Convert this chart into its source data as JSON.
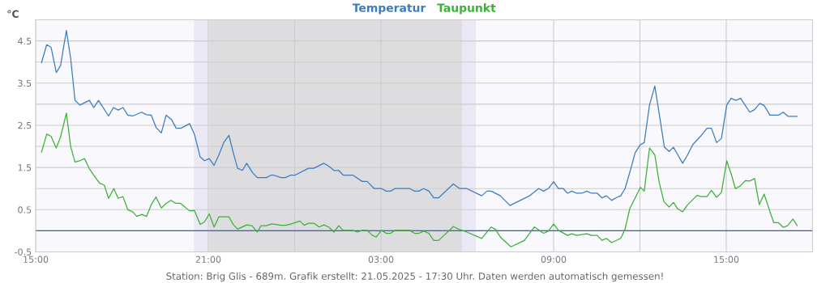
{
  "chart_data": {
    "type": "line",
    "ylabel": "°C",
    "legend": "top",
    "grid": true,
    "line_style": "solid",
    "marker": "none",
    "xlim": [
      "2025-05-20T15:00",
      "2025-05-21T18:00"
    ],
    "xticks": [
      {
        "value": "2025-05-20T15:00",
        "label": "15:00"
      },
      {
        "value": "2025-05-20T21:00",
        "label": "21:00"
      },
      {
        "value": "2025-05-21T00:00",
        "label": null
      },
      {
        "value": "2025-05-21T03:00",
        "label": "03:00"
      },
      {
        "value": "2025-05-21T09:00",
        "label": "09:00"
      },
      {
        "value": "2025-05-21T12:00",
        "label": null
      },
      {
        "value": "2025-05-21T15:00",
        "label": "15:00"
      }
    ],
    "ylim": [
      -0.5,
      5
    ],
    "yticks": [
      -0.5,
      {
        "value": 0,
        "label": null
      },
      0.5,
      {
        "value": 1,
        "label": null
      },
      1.5,
      {
        "value": 2,
        "label": null
      },
      2.5,
      {
        "value": 3,
        "label": null
      },
      3.5,
      {
        "value": 4,
        "label": null
      },
      4.5,
      {
        "value": 5,
        "label": null
      }
    ],
    "bands": [
      {
        "axis": "x",
        "from": "2025-05-20T20:30",
        "to": "2025-05-20T21:02",
        "color": "#ebe8f5"
      },
      {
        "axis": "x",
        "from": "2025-05-20T21:02",
        "to": "2025-05-21T05:49",
        "color": "#dddde0"
      },
      {
        "axis": "x",
        "from": "2025-05-21T05:49",
        "to": "2025-05-21T06:18",
        "color": "#ebe8f5"
      }
    ],
    "ref_lines": [
      {
        "axis": "y",
        "value": 0,
        "color": "#2a5fd8",
        "line_style": "solid"
      }
    ],
    "annotations": [
      "Station: Brig Glis - 689m. Grafik erstellt: 21.05.2025 - 17:30 Uhr. Daten werden automatisch gemessen!"
    ],
    "series": [
      {
        "name": "Temperatur",
        "color": "#3a7cbd",
        "x": [
          "2025-05-20T15:12",
          "2025-05-20T15:23",
          "2025-05-20T15:32",
          "2025-05-20T15:43",
          "2025-05-20T15:52",
          "2025-05-20T16:04",
          "2025-05-20T16:13",
          "2025-05-20T16:22",
          "2025-05-20T16:32",
          "2025-05-20T16:52",
          "2025-05-20T17:01",
          "2025-05-20T17:11",
          "2025-05-20T17:32",
          "2025-05-20T17:42",
          "2025-05-20T17:52",
          "2025-05-20T18:02",
          "2025-05-20T18:12",
          "2025-05-20T18:22",
          "2025-05-20T18:41",
          "2025-05-20T18:51",
          "2025-05-20T19:01",
          "2025-05-20T19:11",
          "2025-05-20T19:22",
          "2025-05-20T19:32",
          "2025-05-20T19:43",
          "2025-05-20T19:53",
          "2025-05-20T20:03",
          "2025-05-20T20:21",
          "2025-05-20T20:31",
          "2025-05-20T20:43",
          "2025-05-20T20:52",
          "2025-05-20T21:02",
          "2025-05-20T21:12",
          "2025-05-20T21:22",
          "2025-05-20T21:33",
          "2025-05-20T21:43",
          "2025-05-20T21:52",
          "2025-05-20T22:01",
          "2025-05-20T22:11",
          "2025-05-20T22:20",
          "2025-05-20T22:32",
          "2025-05-20T22:42",
          "2025-05-20T23:01",
          "2025-05-20T23:11",
          "2025-05-20T23:16",
          "2025-05-20T23:31",
          "2025-05-20T23:41",
          "2025-05-20T23:52",
          "2025-05-21T00:01",
          "2025-05-21T00:29",
          "2025-05-21T00:40",
          "2025-05-21T01:01",
          "2025-05-21T01:11",
          "2025-05-21T01:22",
          "2025-05-21T01:32",
          "2025-05-21T01:41",
          "2025-05-21T02:01",
          "2025-05-21T02:21",
          "2025-05-21T02:31",
          "2025-05-21T02:46",
          "2025-05-21T03:01",
          "2025-05-21T03:11",
          "2025-05-21T03:20",
          "2025-05-21T03:29",
          "2025-05-21T04:00",
          "2025-05-21T04:10",
          "2025-05-21T04:19",
          "2025-05-21T04:29",
          "2025-05-21T04:40",
          "2025-05-21T04:50",
          "2025-05-21T05:00",
          "2025-05-21T05:31",
          "2025-05-21T05:44",
          "2025-05-21T05:59",
          "2025-05-21T06:30",
          "2025-05-21T06:41",
          "2025-05-21T06:50",
          "2025-05-21T07:09",
          "2025-05-21T07:29",
          "2025-05-21T08:10",
          "2025-05-21T08:29",
          "2025-05-21T08:39",
          "2025-05-21T08:49",
          "2025-05-21T09:00",
          "2025-05-21T09:10",
          "2025-05-21T09:20",
          "2025-05-21T09:29",
          "2025-05-21T09:38",
          "2025-05-21T09:48",
          "2025-05-21T09:59",
          "2025-05-21T10:09",
          "2025-05-21T10:19",
          "2025-05-21T10:31",
          "2025-05-21T10:41",
          "2025-05-21T10:50",
          "2025-05-21T11:01",
          "2025-05-21T11:10",
          "2025-05-21T11:20",
          "2025-05-21T11:29",
          "2025-05-21T11:41",
          "2025-05-21T11:50",
          "2025-05-21T12:01",
          "2025-05-21T12:09",
          "2025-05-21T12:20",
          "2025-05-21T12:31",
          "2025-05-21T12:40",
          "2025-05-21T12:51",
          "2025-05-21T13:01",
          "2025-05-21T13:10",
          "2025-05-21T13:19",
          "2025-05-21T13:29",
          "2025-05-21T13:39",
          "2025-05-21T13:50",
          "2025-05-21T14:08",
          "2025-05-21T14:20",
          "2025-05-21T14:29",
          "2025-05-21T14:40",
          "2025-05-21T14:50",
          "2025-05-21T15:01",
          "2025-05-21T15:10",
          "2025-05-21T15:20",
          "2025-05-21T15:30",
          "2025-05-21T15:49",
          "2025-05-21T15:59",
          "2025-05-21T16:10",
          "2025-05-21T16:19",
          "2025-05-21T16:31",
          "2025-05-21T16:49",
          "2025-05-21T16:59",
          "2025-05-21T17:09",
          "2025-05-21T17:28"
        ],
        "values": [
          3.98,
          4.41,
          4.35,
          3.75,
          3.92,
          4.75,
          4.08,
          3.09,
          2.98,
          3.09,
          2.92,
          3.09,
          2.72,
          2.92,
          2.86,
          2.92,
          2.74,
          2.72,
          2.81,
          2.75,
          2.74,
          2.45,
          2.32,
          2.74,
          2.64,
          2.43,
          2.43,
          2.54,
          2.29,
          1.75,
          1.66,
          1.71,
          1.55,
          1.8,
          2.11,
          2.26,
          1.85,
          1.48,
          1.43,
          1.6,
          1.38,
          1.26,
          1.26,
          1.32,
          1.32,
          1.26,
          1.26,
          1.32,
          1.32,
          1.48,
          1.48,
          1.6,
          1.53,
          1.43,
          1.43,
          1.32,
          1.32,
          1.17,
          1.17,
          1.0,
          1.0,
          0.94,
          0.94,
          1.0,
          1.0,
          0.94,
          0.94,
          1.0,
          0.94,
          0.78,
          0.78,
          1.11,
          1.0,
          1.0,
          0.83,
          0.94,
          0.94,
          0.83,
          0.6,
          0.83,
          1.0,
          0.94,
          1.0,
          1.16,
          1.0,
          1.0,
          0.89,
          0.94,
          0.89,
          0.89,
          0.94,
          0.89,
          0.89,
          0.78,
          0.83,
          0.72,
          0.78,
          0.83,
          1.0,
          1.47,
          1.85,
          2.04,
          2.09,
          2.98,
          3.43,
          2.79,
          1.98,
          1.88,
          1.98,
          1.8,
          1.6,
          1.79,
          2.04,
          2.26,
          2.43,
          2.43,
          2.09,
          2.19,
          2.98,
          3.14,
          3.09,
          3.14,
          2.81,
          2.87,
          3.02,
          2.97,
          2.74,
          2.74,
          2.81,
          2.71,
          2.71
        ]
      },
      {
        "name": "Taupunkt",
        "color": "#3cb036",
        "x": [
          "2025-05-20T15:12",
          "2025-05-20T15:23",
          "2025-05-20T15:32",
          "2025-05-20T15:43",
          "2025-05-20T15:52",
          "2025-05-20T16:04",
          "2025-05-20T16:13",
          "2025-05-20T16:22",
          "2025-05-20T16:32",
          "2025-05-20T16:42",
          "2025-05-20T16:52",
          "2025-05-20T17:01",
          "2025-05-20T17:13",
          "2025-05-20T17:23",
          "2025-05-20T17:32",
          "2025-05-20T17:43",
          "2025-05-20T17:52",
          "2025-05-20T18:02",
          "2025-05-20T18:12",
          "2025-05-20T18:22",
          "2025-05-20T18:31",
          "2025-05-20T18:41",
          "2025-05-20T18:51",
          "2025-05-20T19:01",
          "2025-05-20T19:11",
          "2025-05-20T19:22",
          "2025-05-20T19:32",
          "2025-05-20T19:42",
          "2025-05-20T19:52",
          "2025-05-20T20:02",
          "2025-05-20T20:21",
          "2025-05-20T20:31",
          "2025-05-20T20:43",
          "2025-05-20T20:52",
          "2025-05-20T21:02",
          "2025-05-20T21:12",
          "2025-05-20T21:22",
          "2025-05-20T21:43",
          "2025-05-20T21:52",
          "2025-05-20T22:01",
          "2025-05-20T22:20",
          "2025-05-20T22:31",
          "2025-05-20T22:42",
          "2025-05-20T22:50",
          "2025-05-20T23:01",
          "2025-05-20T23:11",
          "2025-05-20T23:16",
          "2025-05-20T23:31",
          "2025-05-20T23:41",
          "2025-05-20T23:52",
          "2025-05-21T00:11",
          "2025-05-21T00:20",
          "2025-05-21T00:29",
          "2025-05-21T00:40",
          "2025-05-21T00:51",
          "2025-05-21T01:01",
          "2025-05-21T01:11",
          "2025-05-21T01:22",
          "2025-05-21T01:32",
          "2025-05-21T01:41",
          "2025-05-21T02:01",
          "2025-05-21T02:11",
          "2025-05-21T02:21",
          "2025-05-21T02:31",
          "2025-05-21T02:41",
          "2025-05-21T02:50",
          "2025-05-21T03:01",
          "2025-05-21T03:11",
          "2025-05-21T03:20",
          "2025-05-21T03:29",
          "2025-05-21T04:00",
          "2025-05-21T04:10",
          "2025-05-21T04:19",
          "2025-05-21T04:29",
          "2025-05-21T04:40",
          "2025-05-21T04:50",
          "2025-05-21T05:00",
          "2025-05-21T05:31",
          "2025-05-21T05:44",
          "2025-05-21T05:59",
          "2025-05-21T06:30",
          "2025-05-21T06:50",
          "2025-05-21T06:59",
          "2025-05-21T07:09",
          "2025-05-21T07:31",
          "2025-05-21T07:59",
          "2025-05-21T08:20",
          "2025-05-21T08:39",
          "2025-05-21T08:49",
          "2025-05-21T09:00",
          "2025-05-21T09:10",
          "2025-05-21T09:29",
          "2025-05-21T09:38",
          "2025-05-21T09:48",
          "2025-05-21T10:09",
          "2025-05-21T10:19",
          "2025-05-21T10:31",
          "2025-05-21T10:41",
          "2025-05-21T10:50",
          "2025-05-21T11:01",
          "2025-05-21T11:20",
          "2025-05-21T11:29",
          "2025-05-21T11:39",
          "2025-05-21T11:50",
          "2025-05-21T12:01",
          "2025-05-21T12:09",
          "2025-05-21T12:20",
          "2025-05-21T12:31",
          "2025-05-21T12:40",
          "2025-05-21T12:50",
          "2025-05-21T13:01",
          "2025-05-21T13:10",
          "2025-05-21T13:19",
          "2025-05-21T13:29",
          "2025-05-21T13:39",
          "2025-05-21T13:59",
          "2025-05-21T14:08",
          "2025-05-21T14:20",
          "2025-05-21T14:29",
          "2025-05-21T14:40",
          "2025-05-21T14:50",
          "2025-05-21T15:01",
          "2025-05-21T15:11",
          "2025-05-21T15:19",
          "2025-05-21T15:29",
          "2025-05-21T15:40",
          "2025-05-21T15:49",
          "2025-05-21T15:59",
          "2025-05-21T16:09",
          "2025-05-21T16:19",
          "2025-05-21T16:39",
          "2025-05-21T16:49",
          "2025-05-21T16:59",
          "2025-05-21T17:08",
          "2025-05-21T17:19",
          "2025-05-21T17:28"
        ],
        "values": [
          1.86,
          2.29,
          2.24,
          1.96,
          2.23,
          2.79,
          1.99,
          1.63,
          1.66,
          1.71,
          1.47,
          1.32,
          1.13,
          1.08,
          0.77,
          1.0,
          0.77,
          0.81,
          0.5,
          0.45,
          0.34,
          0.39,
          0.34,
          0.62,
          0.8,
          0.54,
          0.65,
          0.72,
          0.65,
          0.65,
          0.47,
          0.48,
          0.15,
          0.21,
          0.4,
          0.09,
          0.33,
          0.33,
          0.15,
          0.04,
          0.14,
          0.12,
          -0.03,
          0.12,
          0.12,
          0.16,
          0.16,
          0.13,
          0.13,
          0.16,
          0.23,
          0.13,
          0.18,
          0.18,
          0.09,
          0.14,
          0.09,
          -0.03,
          0.12,
          0.01,
          0.01,
          -0.03,
          0.01,
          0.01,
          -0.1,
          -0.15,
          0.01,
          -0.06,
          -0.06,
          0.01,
          0.01,
          -0.06,
          -0.06,
          -0.01,
          -0.06,
          -0.23,
          -0.23,
          0.1,
          0.03,
          -0.03,
          -0.18,
          0.09,
          0.03,
          -0.15,
          -0.38,
          -0.23,
          0.09,
          -0.06,
          -0.01,
          0.16,
          0.01,
          -0.11,
          -0.07,
          -0.11,
          -0.07,
          -0.11,
          -0.11,
          -0.23,
          -0.18,
          -0.28,
          -0.18,
          0.04,
          0.53,
          0.78,
          1.03,
          0.94,
          1.96,
          1.8,
          1.16,
          0.69,
          0.56,
          0.67,
          0.52,
          0.45,
          0.61,
          0.84,
          0.81,
          0.81,
          0.96,
          0.79,
          0.91,
          1.66,
          1.32,
          1.0,
          1.06,
          1.19,
          1.18,
          1.24,
          0.62,
          0.87,
          0.19,
          0.19,
          0.08,
          0.12,
          0.28,
          0.12
        ]
      }
    ]
  }
}
